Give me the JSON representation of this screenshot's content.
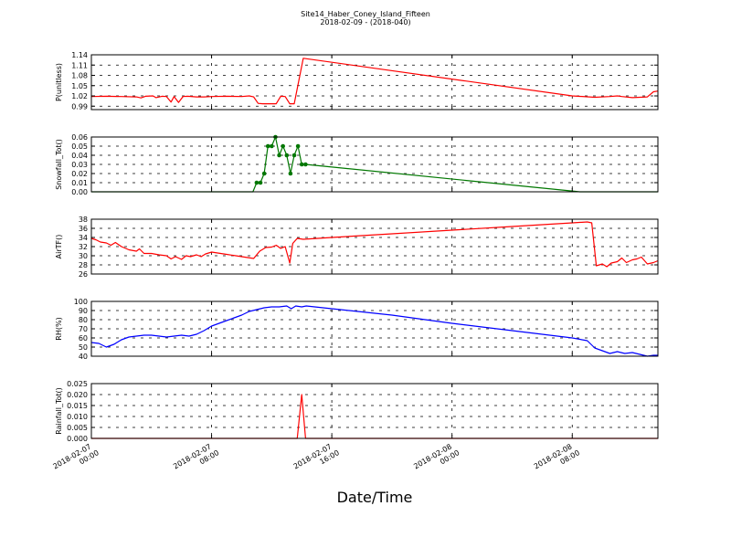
{
  "figure": {
    "title_line1": "Site14_Haber_Coney_Island_Fifteen",
    "title_line2": "2018-02-09 - (2018-040)",
    "xlabel": "Date/Time"
  },
  "chart_data": [
    {
      "type": "line",
      "ylabel": "P(unitless)",
      "ylim": [
        0.98,
        1.14
      ],
      "yticks": [
        "0.99",
        "1.02",
        "1.05",
        "1.08",
        "1.11",
        "1.14"
      ],
      "ytick_values": [
        0.99,
        1.02,
        1.05,
        1.08,
        1.11,
        1.14
      ],
      "xlim": [
        0,
        37.7
      ],
      "grid": true,
      "series": [
        {
          "color": "#ff0000",
          "markers": false,
          "x": [
            0,
            1,
            2,
            3,
            3.3,
            3.6,
            4.1,
            4.3,
            4.7,
            5,
            5.3,
            5.5,
            5.8,
            6.1,
            6.4,
            7,
            7.5,
            8,
            9,
            10,
            10.5,
            10.8,
            11.1,
            11.4,
            12.3,
            12.6,
            12.9,
            13.2,
            13.5,
            14.1,
            32,
            33.5,
            34.5,
            35,
            35.3,
            36,
            37,
            37.4,
            37.7
          ],
          "y": [
            1.018,
            1.019,
            1.018,
            1.017,
            1.014,
            1.019,
            1.02,
            1.015,
            1.019,
            1.018,
            1.002,
            1.018,
            1.001,
            1.018,
            1.019,
            1.017,
            1.017,
            1.018,
            1.019,
            1.018,
            1.02,
            1.017,
            0.998,
            0.997,
            0.997,
            1.019,
            1.018,
            0.997,
            0.997,
            1.13,
            1.02,
            1.016,
            1.018,
            1.02,
            1.018,
            1.015,
            1.017,
            1.032,
            1.034
          ]
        }
      ]
    },
    {
      "type": "line",
      "ylabel": "Snowfall_Tot()",
      "ylim": [
        0,
        0.06
      ],
      "yticks": [
        "0.00",
        "0.01",
        "0.02",
        "0.03",
        "0.04",
        "0.05",
        "0.06"
      ],
      "ytick_values": [
        0,
        0.01,
        0.02,
        0.03,
        0.04,
        0.05,
        0.06
      ],
      "xlim": [
        0,
        37.7
      ],
      "grid": true,
      "series": [
        {
          "color": "#007700",
          "markers": true,
          "x": [
            0,
            0.25,
            0.5,
            0.75,
            1,
            1.25,
            1.5,
            1.75,
            2,
            2.25,
            2.5,
            2.75,
            3,
            3.25,
            3.5,
            3.75,
            4,
            4.25,
            4.5,
            4.75,
            5,
            5.25,
            5.5,
            5.75,
            6,
            6.25,
            6.5,
            6.75,
            7,
            7.25,
            7.5,
            7.75,
            8,
            8.25,
            8.5,
            8.75,
            9,
            9.25,
            9.5,
            9.75,
            10,
            10.25,
            10.5,
            10.75,
            11,
            11.25,
            11.5,
            11.75,
            12,
            12.25,
            12.5,
            12.75,
            13,
            13.25,
            13.5,
            13.75,
            14,
            14.25,
            32.5,
            33,
            33.5,
            34,
            34.5,
            35,
            35.5,
            36,
            36.5,
            37,
            37.5,
            37.7
          ],
          "y": [
            0,
            0,
            0,
            0,
            0,
            0,
            0,
            0,
            0,
            0,
            0,
            0,
            0,
            0,
            0,
            0,
            0,
            0,
            0,
            0,
            0,
            0,
            0,
            0,
            0,
            0,
            0,
            0,
            0,
            0,
            0,
            0,
            0,
            0,
            0,
            0,
            0,
            0,
            0,
            0,
            0,
            0,
            0,
            0,
            0.01,
            0.01,
            0.02,
            0.05,
            0.05,
            0.06,
            0.04,
            0.05,
            0.04,
            0.02,
            0.04,
            0.05,
            0.03,
            0.03,
            0,
            0,
            0,
            0,
            0,
            0,
            0,
            0,
            0,
            0,
            0,
            0
          ]
        }
      ]
    },
    {
      "type": "line",
      "ylabel": "AirTF()",
      "ylim": [
        26,
        38
      ],
      "yticks": [
        "26",
        "28",
        "30",
        "32",
        "34",
        "36",
        "38"
      ],
      "ytick_values": [
        26,
        28,
        30,
        32,
        34,
        36,
        38
      ],
      "xlim": [
        0,
        37.7
      ],
      "grid": true,
      "series": [
        {
          "color": "#ff0000",
          "markers": false,
          "x": [
            0,
            0.3,
            0.6,
            1,
            1.3,
            1.6,
            2,
            2.5,
            3,
            3.2,
            3.5,
            4,
            4.5,
            5,
            5.3,
            5.6,
            6,
            6.3,
            6.6,
            7,
            7.3,
            7.6,
            8,
            9,
            10,
            10.8,
            11.2,
            11.6,
            12,
            12.3,
            12.6,
            12.9,
            13.2,
            13.4,
            13.7,
            14.1,
            16,
            20,
            24,
            28,
            32,
            33,
            33.3,
            33.6,
            34,
            34.3,
            34.6,
            35,
            35.3,
            35.6,
            36,
            36.3,
            36.6,
            37,
            37.4,
            37.7
          ],
          "y": [
            33.8,
            33.5,
            33,
            32.8,
            32.3,
            32.9,
            32,
            31.3,
            31,
            31.5,
            30.5,
            30.5,
            30.2,
            30,
            29.3,
            29.8,
            29.2,
            30,
            29.8,
            30.2,
            29.8,
            30.4,
            30.8,
            30.3,
            29.8,
            29.4,
            31,
            31.8,
            31.9,
            32.3,
            31.6,
            32,
            28.4,
            32.7,
            33.8,
            33.6,
            34,
            34.8,
            35.6,
            36.4,
            37.2,
            37.4,
            37.2,
            27.8,
            28.2,
            27.6,
            28.4,
            28.7,
            29.5,
            28.5,
            29.1,
            29.3,
            29.7,
            28.2,
            28.5,
            28.9
          ]
        }
      ]
    },
    {
      "type": "line",
      "ylabel": "RH(%)",
      "ylim": [
        40,
        100
      ],
      "yticks": [
        "40",
        "50",
        "60",
        "70",
        "80",
        "90",
        "100"
      ],
      "ytick_values": [
        40,
        50,
        60,
        70,
        80,
        90,
        100
      ],
      "xlim": [
        0,
        37.7
      ],
      "grid": true,
      "series": [
        {
          "color": "#0000ff",
          "markers": false,
          "x": [
            0,
            0.5,
            1,
            1.5,
            2,
            2.5,
            3,
            3.5,
            4,
            4.5,
            5,
            5.5,
            6,
            6.5,
            7,
            7.5,
            8,
            9,
            10,
            10.5,
            11,
            11.5,
            12,
            12.5,
            13,
            13.3,
            13.6,
            14,
            14.3,
            16,
            20,
            24,
            28,
            32,
            33,
            33.5,
            34,
            34.5,
            35,
            35.5,
            36,
            36.5,
            37,
            37.4,
            37.7
          ],
          "y": [
            55,
            54,
            50,
            53,
            58,
            61,
            62,
            63,
            63,
            62,
            61,
            62,
            63,
            62,
            64,
            68,
            73,
            79,
            85,
            89,
            91,
            93,
            94,
            94,
            95,
            92,
            95,
            94,
            95,
            92,
            85,
            76,
            68,
            60,
            57,
            49,
            46,
            43,
            45,
            43,
            44,
            42,
            40,
            41,
            41
          ]
        }
      ]
    },
    {
      "type": "line",
      "ylabel": "Rainfall_Tot()",
      "ylim": [
        0,
        0.025
      ],
      "yticks": [
        "0.000",
        "0.005",
        "0.010",
        "0.015",
        "0.020",
        "0.025"
      ],
      "ytick_values": [
        0,
        0.005,
        0.01,
        0.015,
        0.02,
        0.025
      ],
      "xlim": [
        0,
        37.7
      ],
      "grid": true,
      "series": [
        {
          "color": "#ff0000",
          "markers": false,
          "x": [
            0,
            13.7,
            14.0,
            14.25,
            37.7
          ],
          "y": [
            0,
            0,
            0.02,
            0,
            0
          ]
        }
      ]
    }
  ],
  "xaxis": {
    "ticks": [
      {
        "line1": "2018-02-07",
        "line2": "00:00"
      },
      {
        "line1": "2018-02-07",
        "line2": "08:00"
      },
      {
        "line1": "2018-02-07",
        "line2": "16:00"
      },
      {
        "line1": "2018-02-08",
        "line2": "00:00"
      },
      {
        "line1": "2018-02-08",
        "line2": "08:00"
      }
    ],
    "tick_hours": [
      0,
      8,
      16,
      24,
      32
    ]
  }
}
